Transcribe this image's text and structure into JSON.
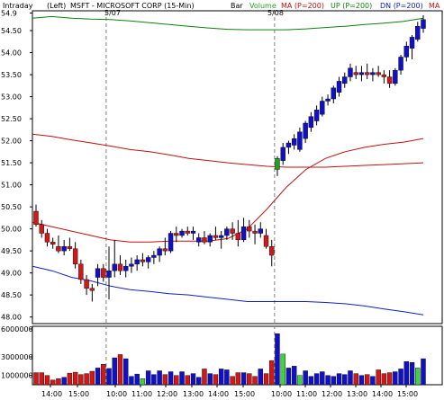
{
  "header": {
    "mode": "Intraday",
    "scale_side": "(Left)",
    "symbol_title": "MSFT - MICROSOFT CORP  (15-Min)",
    "bar_label": "Bar",
    "volume_label": "Volume",
    "ma_label": "MA (P=200)",
    "up_label": "UP (P=200)",
    "dn_label": "DN (P=200)",
    "ma_trunc": "MA"
  },
  "colors": {
    "up_bar": "#1010c8",
    "down_bar": "#d01818",
    "highlight_bar": "#20a020",
    "ma_line": "#c01010",
    "upper_band": "#108010",
    "lower_band": "#1020c0",
    "vol_up": "#1010c8",
    "vol_down": "#d01818",
    "vol_highlight": "#40d040",
    "session_line": "#808080"
  },
  "date_markers": [
    "5/07",
    "5/08"
  ],
  "chart_data": [
    {
      "type": "candlestick",
      "title": "MSFT - MICROSOFT CORP (15-Min)",
      "ylim": [
        47.85,
        54.95
      ],
      "y_ticks": [
        "48.00",
        "48.50",
        "49.00",
        "49.50",
        "50.00",
        "50.50",
        "51.00",
        "51.50",
        "52.00",
        "52.50",
        "53.00",
        "53.50",
        "54.00",
        "54.50",
        "54.9"
      ],
      "x_ticks": [
        "14:00",
        "15:00",
        "10:00",
        "11:00",
        "12:00",
        "13:00",
        "14:00",
        "15:00",
        "10:00",
        "11:00",
        "12:00",
        "13:00",
        "14:00",
        "15:00"
      ],
      "series": [
        {
          "name": "Bar",
          "ohlc": [
            [
              50.4,
              50.55,
              50.05,
              50.1
            ],
            [
              50.1,
              50.2,
              49.8,
              49.9
            ],
            [
              49.9,
              50.0,
              49.6,
              49.7
            ],
            [
              49.7,
              49.8,
              49.55,
              49.65
            ],
            [
              49.6,
              49.85,
              49.45,
              49.5
            ],
            [
              49.5,
              49.75,
              49.4,
              49.6
            ],
            [
              49.6,
              49.8,
              49.5,
              49.55
            ],
            [
              49.55,
              49.7,
              49.1,
              49.2
            ],
            [
              49.2,
              49.3,
              48.75,
              48.85
            ],
            [
              48.85,
              48.95,
              48.5,
              48.65
            ],
            [
              48.65,
              48.75,
              48.35,
              48.6
            ],
            [
              48.9,
              49.2,
              48.7,
              49.1
            ],
            [
              49.1,
              49.2,
              48.8,
              48.9
            ],
            [
              48.9,
              49.6,
              48.4,
              49.05
            ],
            [
              49.05,
              49.75,
              48.9,
              49.2
            ],
            [
              49.2,
              49.4,
              48.95,
              49.05
            ],
            [
              49.05,
              49.3,
              48.9,
              49.15
            ],
            [
              49.15,
              49.35,
              49.0,
              49.2
            ],
            [
              49.2,
              49.4,
              49.05,
              49.3
            ],
            [
              49.3,
              49.45,
              49.15,
              49.25
            ],
            [
              49.25,
              49.4,
              49.1,
              49.35
            ],
            [
              49.35,
              49.5,
              49.2,
              49.4
            ],
            [
              49.4,
              49.6,
              49.25,
              49.55
            ],
            [
              49.55,
              49.8,
              49.4,
              49.5
            ],
            [
              49.5,
              49.95,
              49.45,
              49.9
            ],
            [
              49.9,
              50.05,
              49.7,
              49.85
            ],
            [
              49.85,
              50.0,
              49.8,
              49.95
            ],
            [
              49.95,
              50.05,
              49.85,
              49.9
            ],
            [
              49.9,
              50.05,
              49.75,
              49.95
            ],
            [
              49.7,
              49.9,
              49.6,
              49.8
            ],
            [
              49.8,
              49.95,
              49.65,
              49.7
            ],
            [
              49.7,
              49.9,
              49.6,
              49.85
            ],
            [
              49.85,
              50.05,
              49.75,
              49.8
            ],
            [
              49.8,
              49.95,
              49.55,
              49.85
            ],
            [
              49.85,
              50.05,
              49.75,
              50.0
            ],
            [
              50.0,
              50.15,
              49.75,
              49.9
            ],
            [
              49.9,
              50.2,
              49.6,
              49.75
            ],
            [
              49.75,
              50.25,
              49.7,
              50.05
            ],
            [
              50.05,
              50.2,
              49.8,
              49.95
            ],
            [
              49.95,
              50.1,
              49.65,
              49.9
            ],
            [
              49.9,
              50.15,
              49.8,
              50.0
            ],
            [
              49.85,
              50.0,
              49.55,
              49.6
            ],
            [
              49.6,
              49.75,
              49.15,
              49.4
            ],
            [
              51.35,
              51.65,
              51.2,
              51.6
            ],
            [
              51.55,
              51.95,
              51.45,
              51.85
            ],
            [
              51.85,
              52.0,
              51.7,
              51.95
            ],
            [
              51.9,
              52.15,
              51.8,
              52.05
            ],
            [
              51.8,
              52.3,
              51.75,
              52.2
            ],
            [
              52.05,
              52.45,
              51.95,
              52.4
            ],
            [
              52.3,
              52.65,
              52.2,
              52.55
            ],
            [
              52.45,
              52.8,
              52.35,
              52.7
            ],
            [
              52.6,
              53.0,
              52.55,
              52.9
            ],
            [
              52.9,
              53.05,
              52.8,
              52.95
            ],
            [
              52.95,
              53.25,
              52.85,
              53.2
            ],
            [
              53.1,
              53.45,
              53.0,
              53.35
            ],
            [
              53.3,
              53.55,
              53.2,
              53.45
            ],
            [
              53.45,
              53.75,
              53.35,
              53.65
            ],
            [
              53.55,
              53.7,
              53.4,
              53.5
            ],
            [
              53.5,
              53.7,
              53.35,
              53.55
            ],
            [
              53.55,
              53.75,
              53.4,
              53.5
            ],
            [
              53.5,
              53.65,
              53.35,
              53.55
            ],
            [
              53.55,
              53.7,
              53.45,
              53.5
            ],
            [
              53.5,
              53.6,
              53.3,
              53.45
            ],
            [
              53.45,
              53.6,
              53.2,
              53.3
            ],
            [
              53.3,
              53.65,
              53.25,
              53.6
            ],
            [
              53.6,
              53.95,
              53.5,
              53.9
            ],
            [
              53.9,
              54.25,
              53.8,
              54.15
            ],
            [
              54.1,
              54.4,
              53.85,
              54.35
            ],
            [
              54.3,
              54.7,
              54.25,
              54.6
            ],
            [
              54.55,
              54.85,
              54.45,
              54.75
            ]
          ]
        },
        {
          "name": "MA (P=200)",
          "values": [
            50.15,
            50.05,
            49.95,
            49.85,
            49.75,
            49.7,
            49.7,
            49.72,
            49.72,
            49.72,
            49.78,
            50.0,
            50.45,
            50.95,
            51.35,
            51.6,
            51.75,
            51.85,
            51.92,
            51.97,
            52.05
          ]
        },
        {
          "name": "UP (P=200)",
          "values": [
            54.78,
            54.82,
            54.78,
            54.76,
            54.75,
            54.72,
            54.68,
            54.64,
            54.6,
            54.56,
            54.53,
            54.52,
            54.52,
            54.52,
            54.54,
            54.57,
            54.6,
            54.64,
            54.67,
            54.71,
            54.78
          ]
        },
        {
          "name": "DN (P=200)",
          "values": [
            49.15,
            49.05,
            48.9,
            48.82,
            48.7,
            48.62,
            48.58,
            48.53,
            48.5,
            48.45,
            48.4,
            48.35,
            48.35,
            48.35,
            48.35,
            48.33,
            48.3,
            48.25,
            48.18,
            48.12,
            48.05
          ]
        },
        {
          "name": "MA second segment",
          "values": [
            52.15,
            52.1,
            52.02,
            51.95,
            51.88,
            51.8,
            51.75,
            51.68,
            51.6,
            51.55,
            51.5,
            51.46,
            51.42,
            51.4,
            51.4,
            51.4,
            51.42,
            51.44,
            51.46,
            51.48,
            51.5
          ]
        }
      ]
    },
    {
      "type": "bar",
      "title": "Volume",
      "ylim": [
        0,
        6000000
      ],
      "y_ticks": [
        "6000000",
        "3000000",
        "1000000"
      ],
      "values": [
        1300000,
        1300000,
        1000000,
        500000,
        650000,
        800000,
        1250000,
        1350000,
        1100000,
        1200000,
        1450000,
        1800000,
        2200000,
        1750000,
        2900000,
        3250000,
        2800000,
        900000,
        1150000,
        650000,
        1500000,
        1100000,
        1500000,
        1100000,
        1400000,
        1000000,
        1400000,
        1000000,
        1200000,
        800000,
        1700000,
        1200000,
        1100000,
        1700000,
        1600000,
        900000,
        1300000,
        1300000,
        1200000,
        900000,
        1700000,
        1200000,
        2600000,
        5500000,
        3300000,
        1800000,
        2000000,
        1000000,
        1500000,
        900000,
        1200000,
        1400000,
        1000000,
        900000,
        1200000,
        1100000,
        1500000,
        1200000,
        1000000,
        1100000,
        900000,
        1600000,
        1200000,
        1300000,
        1400000,
        1700000,
        2500000,
        2400000,
        1800000,
        2800000,
        3300000
      ],
      "highlight_index": [
        19,
        44,
        47,
        68
      ]
    }
  ]
}
